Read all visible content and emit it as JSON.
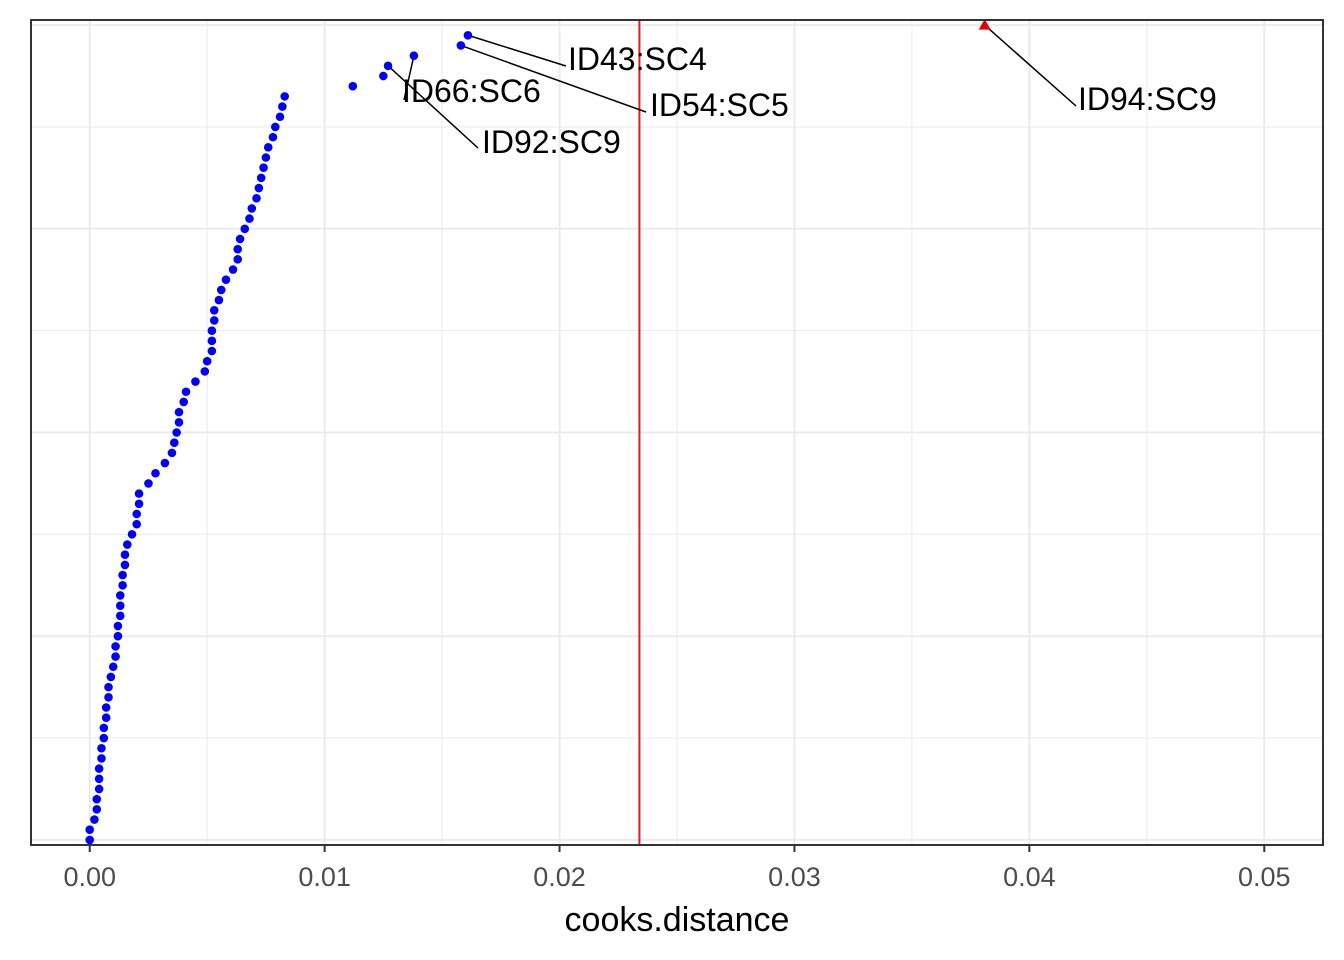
{
  "chart_data": {
    "type": "scatter",
    "title": "",
    "xlabel": "cooks.distance",
    "ylabel": "",
    "xlim": [
      -0.0025,
      0.0525
    ],
    "xticks": [
      "0.00",
      "0.01",
      "0.02",
      "0.03",
      "0.04",
      "0.05"
    ],
    "xtick_values": [
      0,
      0.01,
      0.02,
      0.03,
      0.04,
      0.05
    ],
    "grid": true,
    "legend": "none",
    "threshold": {
      "x": 0.0234,
      "color": "#e41a1c"
    },
    "colors": {
      "points": "#0000ff",
      "outlier": "#e00000",
      "panel_border": "#333333",
      "grid": "#ebebeb"
    },
    "points_x": [
      0.0,
      0.0,
      0.0002,
      0.0003,
      0.0003,
      0.0004,
      0.0004,
      0.0004,
      0.0005,
      0.0005,
      0.0006,
      0.0006,
      0.0007,
      0.0007,
      0.0008,
      0.0008,
      0.0009,
      0.001,
      0.0011,
      0.0011,
      0.0012,
      0.0012,
      0.0013,
      0.0013,
      0.0013,
      0.0014,
      0.0014,
      0.0015,
      0.0015,
      0.0016,
      0.0018,
      0.002,
      0.002,
      0.0021,
      0.0021,
      0.0025,
      0.0028,
      0.0032,
      0.0035,
      0.0036,
      0.0037,
      0.0038,
      0.0038,
      0.004,
      0.0041,
      0.0045,
      0.0049,
      0.005,
      0.0052,
      0.0052,
      0.0052,
      0.0053,
      0.0053,
      0.0055,
      0.0056,
      0.0058,
      0.0061,
      0.0063,
      0.0063,
      0.0064,
      0.0066,
      0.0068,
      0.0069,
      0.0071,
      0.0072,
      0.0073,
      0.0074,
      0.0075,
      0.0076,
      0.0078,
      0.0079,
      0.0081,
      0.0082,
      0.0083,
      0.0112,
      0.0125,
      0.0127,
      0.0138,
      0.0158,
      0.0161,
      0.0381
    ],
    "outlier_index": 80,
    "labels": [
      {
        "text": "ID43:SC4",
        "point_index": 79
      },
      {
        "text": "ID54:SC5",
        "point_index": 78
      },
      {
        "text": "ID66:SC6",
        "point_index": 77
      },
      {
        "text": "ID92:SC9",
        "point_index": 76
      },
      {
        "text": "ID94:SC9",
        "point_index": 80
      }
    ]
  }
}
